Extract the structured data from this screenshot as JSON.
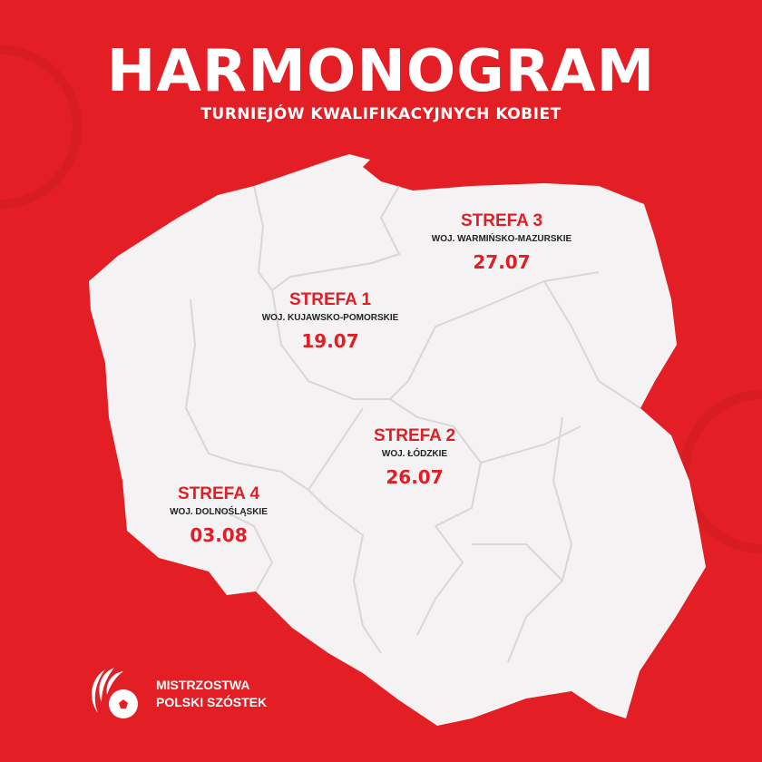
{
  "header": {
    "title": "HARMONOGRAM",
    "subtitle": "TURNIEJÓW KWALIFIKACYJNYCH KOBIET"
  },
  "zones": [
    {
      "name": "STREFA 1",
      "region": "WOJ. KUJAWSKO-POMORSKIE",
      "date": "19.07"
    },
    {
      "name": "STREFA 2",
      "region": "WOJ. ŁÓDZKIE",
      "date": "26.07"
    },
    {
      "name": "STREFA 3",
      "region": "WOJ. WARMIŃSKO-MAZURSKIE",
      "date": "27.07"
    },
    {
      "name": "STREFA 4",
      "region": "WOJ. DOLNOŚLĄSKIE",
      "date": "03.08"
    }
  ],
  "logo": {
    "line1": "MISTRZOSTWA",
    "line2": "POLSKI SZÓSTEK"
  },
  "colors": {
    "background": "#e31e24",
    "map": "#f4f2f2",
    "accent": "#e01e25"
  }
}
